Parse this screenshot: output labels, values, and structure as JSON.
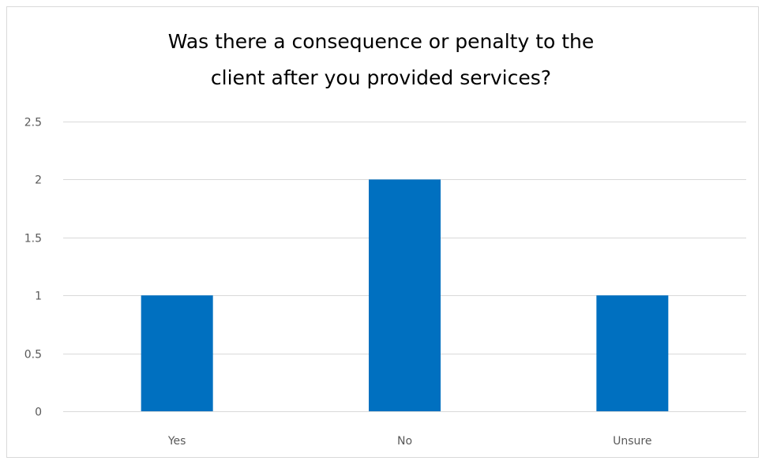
{
  "chart_data": {
    "type": "bar",
    "title_lines": [
      "Was there a consequence or penalty to the",
      "client after you provided services?"
    ],
    "categories": [
      "Yes",
      "No",
      "Unsure"
    ],
    "values": [
      1,
      2,
      1
    ],
    "ylim": [
      0,
      2.5
    ],
    "yticks": [
      "0",
      "0.5",
      "1",
      "1.5",
      "2",
      "2.5"
    ],
    "grid": true,
    "legend": "none",
    "bar_color": "#0070c0",
    "grid_color": "#d9d9d9",
    "tick_label_color": "#595959"
  }
}
